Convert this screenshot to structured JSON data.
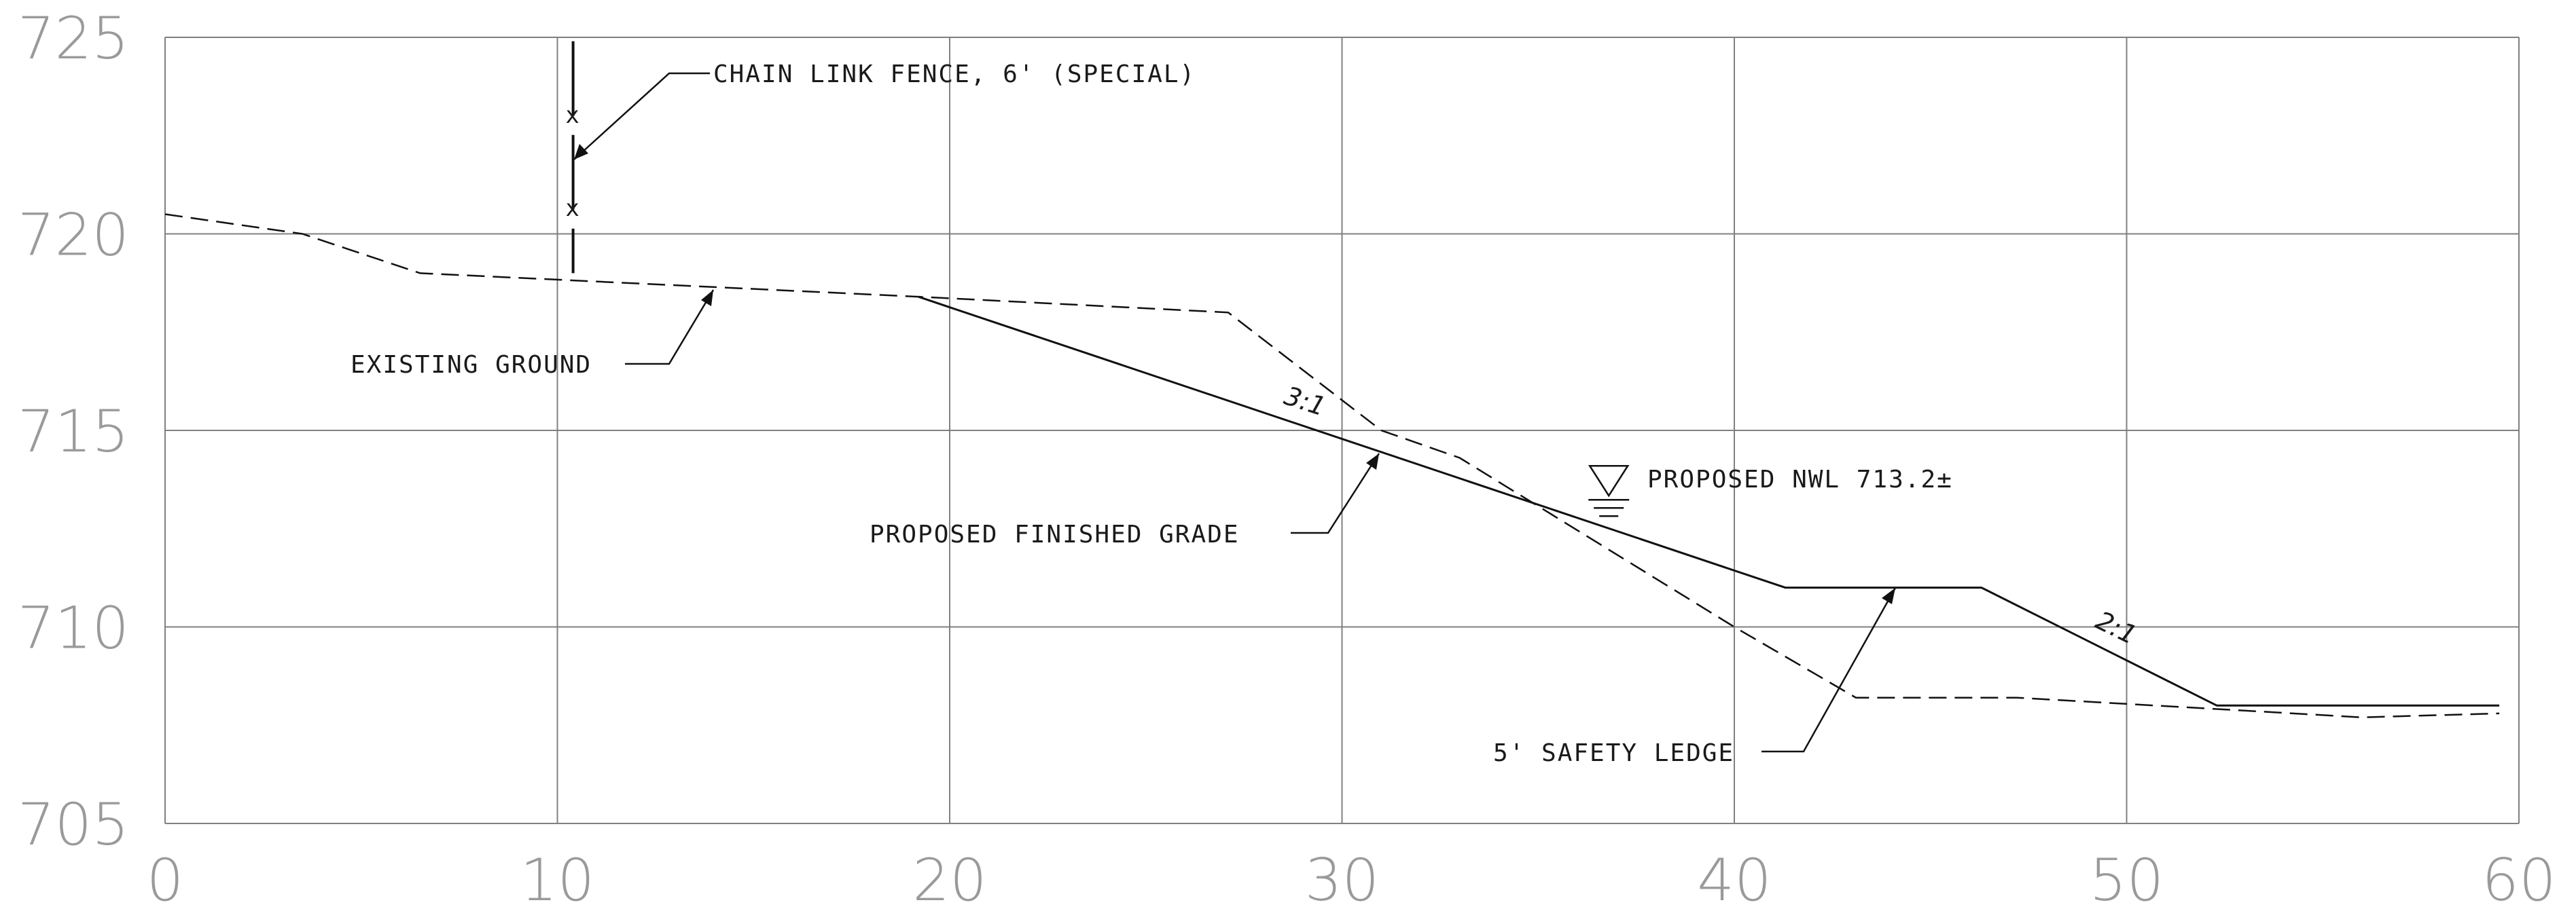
{
  "chart_data": {
    "type": "line",
    "xlim": [
      0,
      60
    ],
    "ylim": [
      705,
      725
    ],
    "x_ticks": [
      "0",
      "10",
      "20",
      "30",
      "40",
      "50",
      "60"
    ],
    "y_ticks": [
      "725",
      "720",
      "715",
      "710",
      "705"
    ],
    "grid": true,
    "series": [
      {
        "style": "dashed",
        "points": [
          [
            0,
            720.5
          ],
          [
            3.5,
            720.0
          ],
          [
            6.5,
            719.0
          ],
          [
            19.2,
            718.4
          ],
          [
            27.1,
            718.0
          ],
          [
            31,
            715.0
          ],
          [
            33,
            714.3
          ],
          [
            40,
            710.0
          ],
          [
            43.1,
            708.2
          ],
          [
            47.2,
            708.2
          ],
          [
            52.5,
            707.9
          ],
          [
            56,
            707.7
          ],
          [
            59.5,
            707.8
          ]
        ]
      },
      {
        "style": "solid",
        "points": [
          [
            19.2,
            718.4
          ],
          [
            41.3,
            711.0
          ],
          [
            46.3,
            711.0
          ],
          [
            52.3,
            708.0
          ],
          [
            59.5,
            708.0
          ]
        ]
      }
    ],
    "fence": {
      "x": 10.4,
      "y_top": 724.9,
      "y_bottom": 719.0
    },
    "water_level": {
      "x": 36.8,
      "y": 713.2
    }
  },
  "annotations": {
    "fence_label": "CHAIN LINK FENCE, 6' (SPECIAL)",
    "existing_ground": "EXISTING GROUND",
    "finished_grade": "PROPOSED FINISHED GRADE",
    "nwl": "PROPOSED NWL 713.2±",
    "safety_ledge": "5' SAFETY LEDGE",
    "slope_3_1": "3:1",
    "slope_2_1": "2:1",
    "fence_marker": "x"
  }
}
